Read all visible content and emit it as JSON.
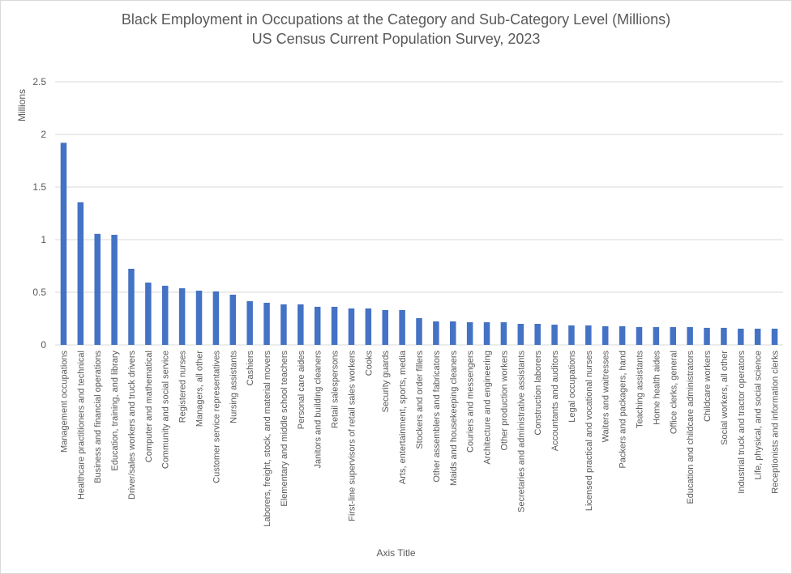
{
  "chart_data": {
    "type": "bar",
    "title": "Black Employment in Occupations at the Category and Sub-Category Level (Millions)",
    "subtitle": "US Census Current Population Survey, 2023",
    "xlabel": "Axis Title",
    "ylabel": "Millions",
    "ylim": [
      0,
      2.5
    ],
    "yticks": [
      "0",
      "0.5",
      "1",
      "1.5",
      "2",
      "2.5"
    ],
    "ytick_values": [
      0,
      0.5,
      1,
      1.5,
      2,
      2.5
    ],
    "grid": true,
    "bar_color": "#4472C4",
    "categories": [
      "Management occupations",
      "Healthcare practitioners and technical",
      "Business and financial operations",
      "Education, training, and library",
      "Driver/sales workers and truck drivers",
      "Computer and mathematical",
      "Community and social service",
      "Registered nurses",
      "Managers, all other",
      "Customer service representatives",
      "Nursing assistants",
      "Cashiers",
      "Laborers, freight, stock, and material movers",
      "Elementary and middle school teachers",
      "Personal care aides",
      "Janitors and building cleaners",
      "Retail salespersons",
      "First-line supervisors of retail sales workers",
      "Cooks",
      "Security guards",
      "Arts, entertainment, sports, media",
      "Stockers and order fillers",
      "Other assemblers and fabricators",
      "Maids and housekeeping cleaners",
      "Couriers and messengers",
      "Architecture and engineering",
      "Other production workers",
      "Secretaries and administrative assistants",
      "Construction laborers",
      "Accountants and auditors",
      "Legal occupations",
      "Licensed practical and vocational nurses",
      "Waiters and waitresses",
      "Packers and packagers, hand",
      "Teaching assistants",
      "Home health aides",
      "Office clerks, general",
      "Education and childcare administrators",
      "Childcare workers",
      "Social workers, all other",
      "Industrial truck and tractor operators",
      "Life, physical, and social science",
      "Receptionists and information clerks"
    ],
    "values": [
      1.92,
      1.355,
      1.055,
      1.046,
      0.723,
      0.592,
      0.562,
      0.538,
      0.515,
      0.508,
      0.477,
      0.415,
      0.4,
      0.385,
      0.385,
      0.362,
      0.362,
      0.346,
      0.346,
      0.331,
      0.331,
      0.254,
      0.223,
      0.223,
      0.215,
      0.215,
      0.215,
      0.2,
      0.2,
      0.192,
      0.185,
      0.185,
      0.177,
      0.177,
      0.169,
      0.169,
      0.169,
      0.169,
      0.162,
      0.162,
      0.154,
      0.154,
      0.154
    ]
  }
}
